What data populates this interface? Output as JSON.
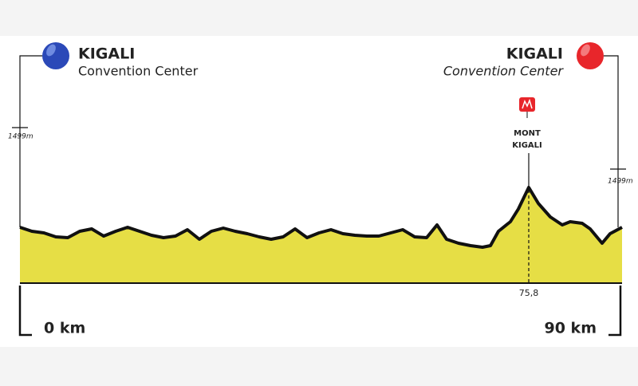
{
  "start": {
    "city": "KIGALI",
    "venue": "Convention Center",
    "altitude": "1499m",
    "distance": "0 km"
  },
  "finish": {
    "city": "KIGALI",
    "venue": "Convention Center",
    "altitude": "1499m",
    "distance": "90 km"
  },
  "climb": {
    "name_lines": [
      "MONT",
      "KIGALI"
    ],
    "km": "75,8"
  }
}
